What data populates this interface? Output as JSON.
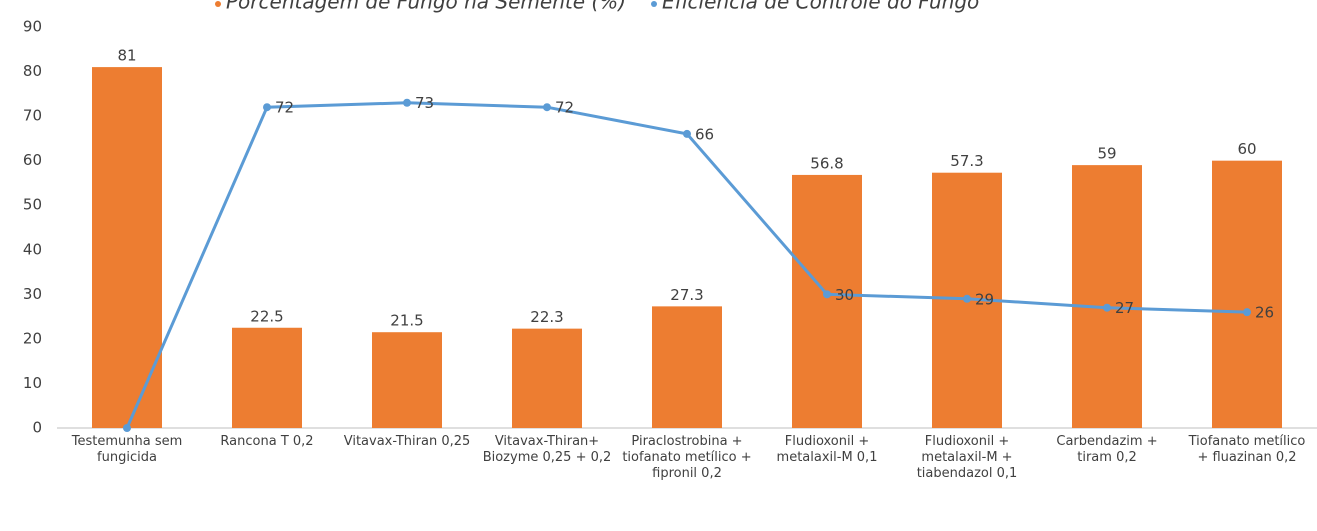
{
  "chart_data": {
    "type": "bar_line",
    "categories": [
      "Testemunha sem fungicida",
      "Rancona T 0,2",
      "Vitavax-Thiran 0,25",
      "Vitavax-Thiran+ Biozyme 0,25 + 0,2",
      "Piraclostrobina + tiofanato metílico + fipronil 0,2",
      "Fludioxonil + metalaxil-M 0,1",
      "Fludioxonil + metalaxil-M + tiabendazol 0,1",
      "Carbendazim + tiram 0,2",
      "Tiofanato metílico + fluazinan 0,2"
    ],
    "series": [
      {
        "name": "Porcentagem de Fungo na Semente (%)",
        "type": "bar",
        "color": "#ed7d31",
        "values": [
          81,
          22.5,
          21.5,
          22.3,
          27.3,
          56.8,
          57.3,
          59,
          60
        ]
      },
      {
        "name": "Eficiência de Controle do Fungo",
        "type": "line",
        "color": "#5b9bd5",
        "values": [
          0,
          72,
          73,
          72,
          66,
          30,
          29,
          27,
          26
        ],
        "value_labels": [
          null,
          "72",
          "73",
          "72",
          "66",
          "30",
          "29",
          "27",
          "26"
        ]
      }
    ],
    "ylim": [
      0,
      90
    ],
    "yticks": [
      0,
      10,
      20,
      30,
      40,
      50,
      60,
      70,
      80,
      90
    ],
    "legend": "top"
  }
}
